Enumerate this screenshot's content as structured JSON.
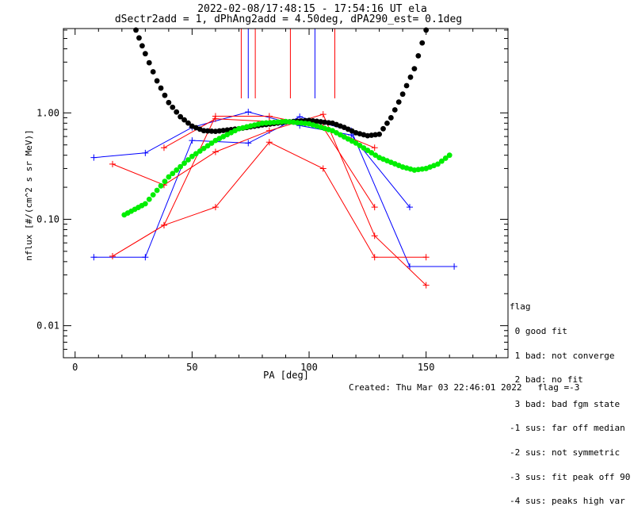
{
  "chart_data": {
    "type": "line",
    "title_line1": "2022-02-08/17:48:15 - 17:54:16 UT ela",
    "title_line2": "dSectr2add = 1, dPhAng2add = 4.50deg, dPA290_est=   0.1deg",
    "xlabel": "PA [deg]",
    "ylabel": "nflux [#/(cm^2 s sr MeV)]",
    "xlim": [
      -5,
      185
    ],
    "ylim_log": [
      0.005,
      6.2
    ],
    "y_scale": "log",
    "xticks": [
      0,
      50,
      100,
      150
    ],
    "xtick_labels": [
      "0",
      "50",
      "100",
      "150"
    ],
    "yticks": [
      0.01,
      0.1,
      1.0
    ],
    "ytick_labels": [
      "0.01",
      "0.10",
      "1.00"
    ],
    "vertical_lines": [
      {
        "x": 71,
        "color": "#ff0000"
      },
      {
        "x": 74,
        "color": "#0000ff"
      },
      {
        "x": 77,
        "color": "#ff0000"
      },
      {
        "x": 92,
        "color": "#ff0000"
      },
      {
        "x": 102.5,
        "color": "#0000ff"
      },
      {
        "x": 111,
        "color": "#ff0000"
      }
    ],
    "series": [
      {
        "color": "#0000ff",
        "marker": "plus",
        "points": [
          [
            8,
            0.38
          ],
          [
            30,
            0.42
          ],
          [
            50,
            0.73
          ],
          [
            74,
            1.02
          ],
          [
            96,
            0.76
          ],
          [
            118,
            0.62
          ],
          [
            143,
            0.13
          ]
        ]
      },
      {
        "color": "#0000ff",
        "marker": "plus",
        "points": [
          [
            8,
            0.044
          ],
          [
            30,
            0.044
          ],
          [
            50,
            0.55
          ],
          [
            74,
            0.52
          ],
          [
            96,
            0.92
          ],
          [
            118,
            0.68
          ],
          [
            143,
            0.036
          ],
          [
            162,
            0.036
          ]
        ]
      },
      {
        "color": "#ff0000",
        "marker": "plus",
        "points": [
          [
            16,
            0.045
          ],
          [
            38,
            0.088
          ],
          [
            60,
            0.93
          ],
          [
            83,
            0.93
          ],
          [
            106,
            0.73
          ],
          [
            128,
            0.13
          ]
        ]
      },
      {
        "color": "#ff0000",
        "marker": "plus",
        "points": [
          [
            16,
            0.33
          ],
          [
            38,
            0.21
          ],
          [
            60,
            0.43
          ],
          [
            83,
            0.68
          ],
          [
            106,
            0.97
          ],
          [
            128,
            0.07
          ],
          [
            150,
            0.024
          ]
        ]
      },
      {
        "color": "#ff0000",
        "marker": "plus",
        "points": [
          [
            16,
            0.045
          ],
          [
            38,
            0.088
          ],
          [
            60,
            0.13
          ],
          [
            83,
            0.53
          ],
          [
            106,
            0.3
          ],
          [
            128,
            0.044
          ],
          [
            150,
            0.044
          ]
        ]
      },
      {
        "color": "#ff0000",
        "marker": "plus",
        "points": [
          [
            38,
            0.47
          ],
          [
            60,
            0.88
          ],
          [
            83,
            0.83
          ],
          [
            106,
            0.74
          ],
          [
            128,
            0.47
          ]
        ]
      },
      {
        "color": "#000000",
        "marker": "dot",
        "style": "fit",
        "points": [
          [
            26,
            6.0
          ],
          [
            30,
            3.6
          ],
          [
            35,
            2.0
          ],
          [
            40,
            1.25
          ],
          [
            45,
            0.92
          ],
          [
            50,
            0.75
          ],
          [
            55,
            0.68
          ],
          [
            60,
            0.67
          ],
          [
            70,
            0.71
          ],
          [
            80,
            0.77
          ],
          [
            90,
            0.82
          ],
          [
            100,
            0.85
          ],
          [
            110,
            0.8
          ],
          [
            115,
            0.73
          ],
          [
            120,
            0.65
          ],
          [
            125,
            0.61
          ],
          [
            130,
            0.63
          ],
          [
            135,
            0.9
          ],
          [
            140,
            1.5
          ],
          [
            145,
            2.6
          ],
          [
            150,
            6.0
          ]
        ]
      },
      {
        "color": "#00ee00",
        "marker": "dot",
        "style": "fit",
        "points": [
          [
            21,
            0.11
          ],
          [
            30,
            0.14
          ],
          [
            40,
            0.25
          ],
          [
            50,
            0.39
          ],
          [
            60,
            0.55
          ],
          [
            70,
            0.71
          ],
          [
            80,
            0.8
          ],
          [
            90,
            0.83
          ],
          [
            100,
            0.79
          ],
          [
            110,
            0.68
          ],
          [
            120,
            0.52
          ],
          [
            130,
            0.38
          ],
          [
            140,
            0.31
          ],
          [
            145,
            0.29
          ],
          [
            150,
            0.3
          ],
          [
            155,
            0.33
          ],
          [
            160,
            0.4
          ]
        ]
      }
    ]
  },
  "legend": {
    "title": "flag",
    "items": [
      " 0 good fit",
      " 1 bad: not converge",
      " 2 bad: no fit",
      " 3 bad: bad fgm state",
      "-1 sus: far off median",
      "-2 sus: not symmetric",
      "-3 sus: fit peak off 90",
      "-4 sus: peaks high var"
    ]
  },
  "footer": {
    "created": "Created: Thu Mar 03 22:46:01 2022",
    "flag": "flag =-3"
  }
}
